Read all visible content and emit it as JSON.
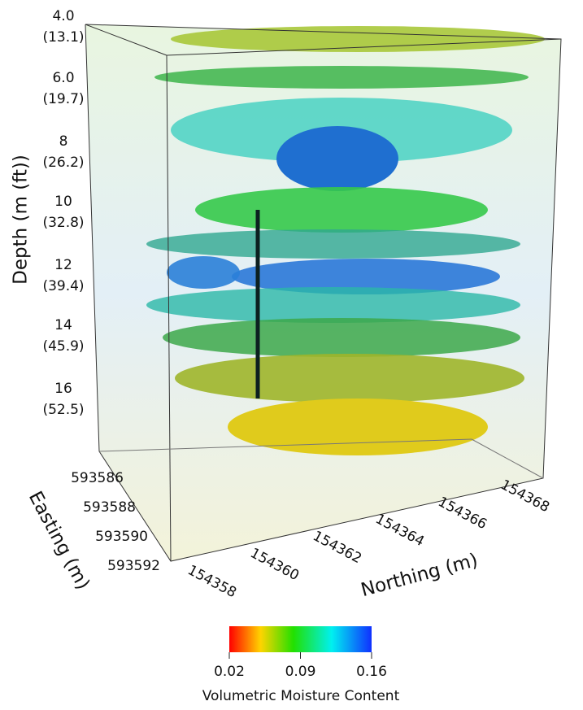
{
  "depth_axis": {
    "title": "Depth (m (ft))",
    "ticks": [
      {
        "m": "4.0",
        "ft": "(13.1)"
      },
      {
        "m": "6.0",
        "ft": "(19.7)"
      },
      {
        "m": "8",
        "ft": "(26.2)"
      },
      {
        "m": "10",
        "ft": "(32.8)"
      },
      {
        "m": "12",
        "ft": "(39.4)"
      },
      {
        "m": "14",
        "ft": "(45.9)"
      },
      {
        "m": "16",
        "ft": "(52.5)"
      }
    ]
  },
  "easting_axis": {
    "title": "Easting (m)",
    "ticks": [
      "593586",
      "593588",
      "593590",
      "593592"
    ]
  },
  "northing_axis": {
    "title": "Northing (m)",
    "ticks": [
      "154358",
      "154360",
      "154362",
      "154364",
      "154366",
      "154368"
    ]
  },
  "colorbar": {
    "label": "Volumetric Moisture Content",
    "lim": [
      0.02,
      0.16
    ],
    "ticks": [
      0.02,
      0.09,
      0.16
    ]
  }
}
